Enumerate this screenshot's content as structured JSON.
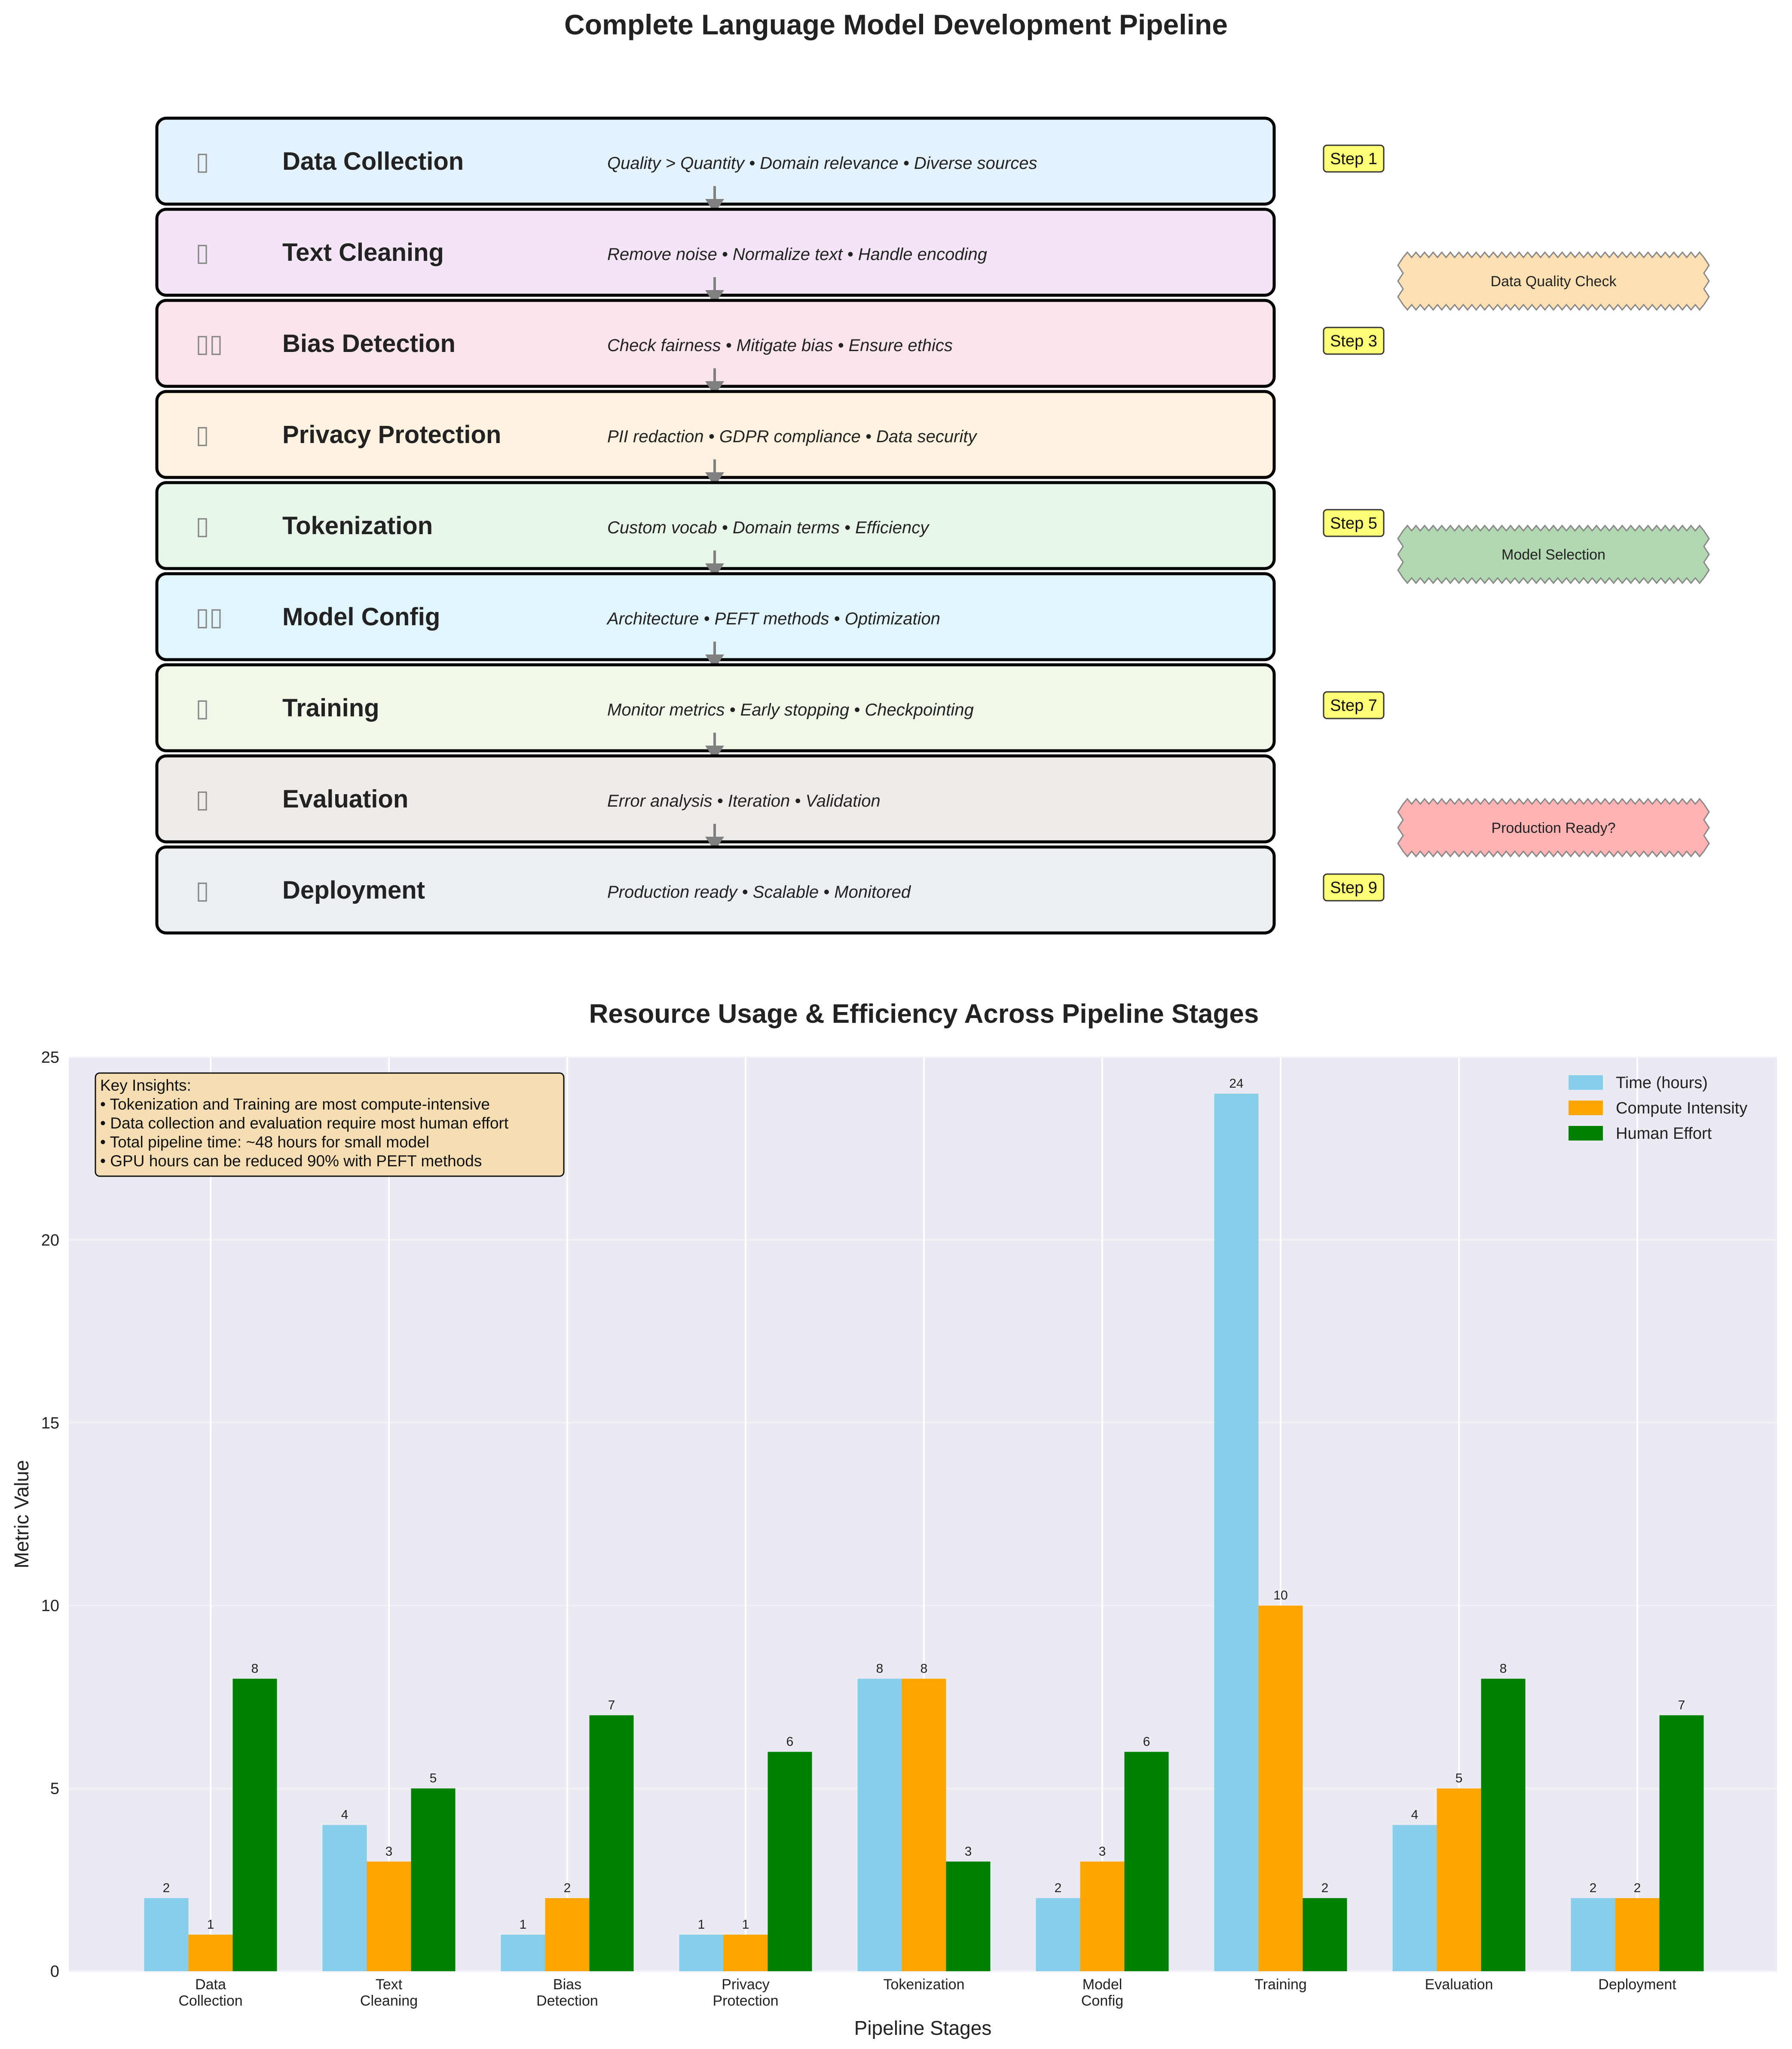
{
  "pipeline": {
    "title": "Complete Language Model Development Pipeline",
    "stages": [
      {
        "glyph": "▯",
        "title": "Data Collection",
        "desc": "Quality > Quantity • Domain relevance • Diverse sources",
        "fill": "#E3F2FD"
      },
      {
        "glyph": "▯",
        "title": "Text Cleaning",
        "desc": "Remove noise • Normalize text • Handle encoding",
        "fill": "#F3E5F5"
      },
      {
        "glyph": "▯▯",
        "title": "Bias Detection",
        "desc": "Check fairness • Mitigate bias • Ensure ethics",
        "fill": "#FCE4EC"
      },
      {
        "glyph": "▯",
        "title": "Privacy Protection",
        "desc": "PII redaction • GDPR compliance • Data security",
        "fill": "#FFF3E0"
      },
      {
        "glyph": "▯",
        "title": "Tokenization",
        "desc": "Custom vocab • Domain terms • Efficiency",
        "fill": "#E8F5E9"
      },
      {
        "glyph": "▯▯",
        "title": "Model Config",
        "desc": "Architecture • PEFT methods • Optimization",
        "fill": "#E1F5FE"
      },
      {
        "glyph": "▯",
        "title": "Training",
        "desc": "Monitor metrics • Early stopping • Checkpointing",
        "fill": "#F1F8E9"
      },
      {
        "glyph": "▯",
        "title": "Evaluation",
        "desc": "Error analysis • Iteration • Validation",
        "fill": "#EFEBE9"
      },
      {
        "glyph": "▯",
        "title": "Deployment",
        "desc": "Production ready • Scalable • Monitored",
        "fill": "#ECEFF1"
      }
    ],
    "steps": [
      {
        "label": "Step 1",
        "stage": 0
      },
      {
        "label": "Step 3",
        "stage": 2
      },
      {
        "label": "Step 5",
        "stage": 4
      },
      {
        "label": "Step 7",
        "stage": 6
      },
      {
        "label": "Step 9",
        "stage": 8
      }
    ],
    "checkpoints": [
      {
        "label": "Data Quality Check",
        "after_stage": 1,
        "color": "#FFE0B2"
      },
      {
        "label": "Model Selection",
        "after_stage": 4,
        "color": "#B2D8B2"
      },
      {
        "label": "Production Ready?",
        "after_stage": 7,
        "color": "#FFB3B3"
      }
    ]
  },
  "chart_data": {
    "type": "bar",
    "title": "Resource Usage & Efficiency Across Pipeline Stages",
    "xlabel": "Pipeline Stages",
    "ylabel": "Metric Value",
    "categories": [
      "Data\nCollection",
      "Text\nCleaning",
      "Bias\nDetection",
      "Privacy\nProtection",
      "Tokenization",
      "Model\nConfig",
      "Training",
      "Evaluation",
      "Deployment"
    ],
    "series": [
      {
        "name": "Time (hours)",
        "color": "#87CEEB",
        "values": [
          2,
          4,
          1,
          1,
          8,
          2,
          24,
          4,
          2
        ]
      },
      {
        "name": "Compute Intensity",
        "color": "#FFA500",
        "values": [
          1,
          3,
          2,
          1,
          8,
          3,
          10,
          5,
          2
        ]
      },
      {
        "name": "Human Effort",
        "color": "#008000",
        "values": [
          8,
          5,
          7,
          6,
          3,
          6,
          2,
          8,
          7
        ]
      }
    ],
    "ylim": [
      0,
      25
    ],
    "yticks": [
      0,
      5,
      10,
      15,
      20,
      25
    ],
    "grid": true,
    "legend": "top-right",
    "insights": {
      "title": "Key Insights:",
      "lines": [
        "• Tokenization and Training are most compute-intensive",
        "• Data collection and evaluation require most human effort",
        "• Total pipeline time: ~48 hours for small model",
        "• GPU hours can be reduced 90% with PEFT methods"
      ]
    }
  }
}
